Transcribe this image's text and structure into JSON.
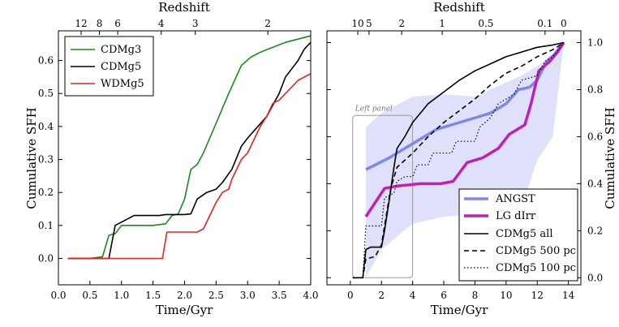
{
  "chart_data": [
    {
      "type": "line",
      "panel": "left",
      "xlabel": "Time/Gyr",
      "ylabel": "Cumulative SFH",
      "top_axis_label": "Redshift",
      "xlim": [
        0.0,
        4.0
      ],
      "ylim": [
        -0.08,
        0.69
      ],
      "xticks": [
        0.0,
        0.5,
        1.0,
        1.5,
        2.0,
        2.5,
        3.0,
        3.5,
        4.0
      ],
      "xtick_labels": [
        "0.0",
        "0.5",
        "1.0",
        "1.5",
        "2.0",
        "2.5",
        "3.0",
        "3.5",
        "4.0"
      ],
      "yticks": [
        0.0,
        0.1,
        0.2,
        0.3,
        0.4,
        0.5,
        0.6
      ],
      "ytick_labels": [
        "0.0",
        "0.1",
        "0.2",
        "0.3",
        "0.4",
        "0.5",
        "0.6"
      ],
      "top_ticks": [
        {
          "t": 0.36,
          "label": "12"
        },
        {
          "t": 0.65,
          "label": "8"
        },
        {
          "t": 0.94,
          "label": "6"
        },
        {
          "t": 1.63,
          "label": "4"
        },
        {
          "t": 2.17,
          "label": "3"
        },
        {
          "t": 3.32,
          "label": "2"
        }
      ],
      "legend_position": "upper-left",
      "series": [
        {
          "name": "CDMg3",
          "color": "#1a8a1a",
          "width": 1.6,
          "points": [
            [
              0.15,
              0
            ],
            [
              0.5,
              0
            ],
            [
              0.7,
              0.005
            ],
            [
              0.8,
              0.07
            ],
            [
              0.9,
              0.075
            ],
            [
              1.0,
              0.1
            ],
            [
              1.5,
              0.1
            ],
            [
              1.7,
              0.105
            ],
            [
              1.8,
              0.13
            ],
            [
              1.9,
              0.135
            ],
            [
              2.0,
              0.18
            ],
            [
              2.1,
              0.27
            ],
            [
              2.2,
              0.285
            ],
            [
              2.3,
              0.32
            ],
            [
              2.5,
              0.41
            ],
            [
              2.7,
              0.5
            ],
            [
              2.9,
              0.585
            ],
            [
              3.05,
              0.61
            ],
            [
              3.2,
              0.625
            ],
            [
              3.4,
              0.64
            ],
            [
              3.6,
              0.655
            ],
            [
              3.8,
              0.665
            ],
            [
              4.0,
              0.675
            ]
          ]
        },
        {
          "name": "CDMg5",
          "color": "#000000",
          "width": 1.6,
          "points": [
            [
              0.15,
              0
            ],
            [
              0.8,
              0
            ],
            [
              0.9,
              0.1
            ],
            [
              1.1,
              0.12
            ],
            [
              1.2,
              0.13
            ],
            [
              1.6,
              0.13
            ],
            [
              1.7,
              0.133
            ],
            [
              2.0,
              0.133
            ],
            [
              2.1,
              0.135
            ],
            [
              2.2,
              0.18
            ],
            [
              2.35,
              0.2
            ],
            [
              2.5,
              0.21
            ],
            [
              2.6,
              0.23
            ],
            [
              2.75,
              0.27
            ],
            [
              2.9,
              0.34
            ],
            [
              3.0,
              0.365
            ],
            [
              3.3,
              0.43
            ],
            [
              3.5,
              0.5
            ],
            [
              3.6,
              0.55
            ],
            [
              3.7,
              0.575
            ],
            [
              3.8,
              0.6
            ],
            [
              3.9,
              0.635
            ],
            [
              4.0,
              0.655
            ]
          ]
        },
        {
          "name": "WDMg5",
          "color": "#e8231c",
          "width": 1.6,
          "points": [
            [
              0.15,
              0
            ],
            [
              1.65,
              0
            ],
            [
              1.72,
              0.08
            ],
            [
              2.2,
              0.08
            ],
            [
              2.3,
              0.09
            ],
            [
              2.4,
              0.13
            ],
            [
              2.5,
              0.17
            ],
            [
              2.6,
              0.2
            ],
            [
              2.7,
              0.21
            ],
            [
              2.75,
              0.24
            ],
            [
              2.9,
              0.3
            ],
            [
              3.0,
              0.32
            ],
            [
              3.1,
              0.36
            ],
            [
              3.2,
              0.4
            ],
            [
              3.3,
              0.43
            ],
            [
              3.4,
              0.47
            ],
            [
              3.5,
              0.48
            ],
            [
              3.6,
              0.5
            ],
            [
              3.7,
              0.52
            ],
            [
              3.8,
              0.54
            ],
            [
              4.0,
              0.56
            ]
          ]
        }
      ]
    },
    {
      "type": "line",
      "panel": "right",
      "xlabel": "Time/Gyr",
      "ylabel": "Cumulative SFH",
      "top_axis_label": "Redshift",
      "xlim": [
        -1.5,
        14.8
      ],
      "ylim": [
        -0.03,
        1.05
      ],
      "xticks": [
        0,
        2,
        4,
        6,
        8,
        10,
        12,
        14
      ],
      "xtick_labels": [
        "0",
        "2",
        "4",
        "6",
        "8",
        "10",
        "12",
        "14"
      ],
      "yticks": [
        0.0,
        0.2,
        0.4,
        0.6,
        0.8,
        1.0
      ],
      "ytick_labels": [
        "0.0",
        "0.2",
        "0.4",
        "0.6",
        "0.8",
        "1.0"
      ],
      "top_ticks": [
        {
          "t": 0.48,
          "label": "10"
        },
        {
          "t": 1.2,
          "label": "5"
        },
        {
          "t": 3.3,
          "label": "2"
        },
        {
          "t": 5.9,
          "label": "1"
        },
        {
          "t": 8.7,
          "label": "0.5"
        },
        {
          "t": 12.5,
          "label": "0.1"
        },
        {
          "t": 13.7,
          "label": "0"
        }
      ],
      "annotation": "Left panel",
      "annotation_box": {
        "t0": 0.15,
        "t1": 4.0,
        "y0": 0.0,
        "y1": 0.69
      },
      "legend_position": "lower-right",
      "band": {
        "color": "#8a93e8",
        "x": [
          1.0,
          2.0,
          4.0,
          6.0,
          8.0,
          10.0,
          11.0,
          12.0,
          13.0,
          13.7
        ],
        "upper": [
          0.64,
          0.7,
          0.77,
          0.78,
          0.77,
          0.83,
          0.86,
          0.9,
          0.95,
          1.0
        ],
        "lower": [
          0.0,
          0.12,
          0.23,
          0.26,
          0.27,
          0.27,
          0.3,
          0.5,
          0.6,
          1.0
        ]
      },
      "series": [
        {
          "name": "ANGST",
          "color": "#7f86ee",
          "width": 3.5,
          "dash": "",
          "points": [
            [
              1.0,
              0.46
            ],
            [
              2.5,
              0.51
            ],
            [
              4.0,
              0.57
            ],
            [
              5.5,
              0.63
            ],
            [
              7.0,
              0.66
            ],
            [
              9.0,
              0.7
            ],
            [
              10.0,
              0.74
            ],
            [
              10.8,
              0.8
            ],
            [
              11.5,
              0.81
            ],
            [
              12.0,
              0.84
            ],
            [
              12.6,
              0.92
            ],
            [
              13.1,
              0.95
            ],
            [
              13.7,
              1.0
            ]
          ]
        },
        {
          "name": "LG dIrr",
          "color": "#c020b8",
          "width": 3.5,
          "dash": "",
          "points": [
            [
              1.0,
              0.26
            ],
            [
              2.2,
              0.38
            ],
            [
              3.0,
              0.39
            ],
            [
              4.5,
              0.4
            ],
            [
              5.8,
              0.4
            ],
            [
              6.6,
              0.41
            ],
            [
              7.5,
              0.49
            ],
            [
              8.5,
              0.51
            ],
            [
              9.5,
              0.55
            ],
            [
              10.2,
              0.61
            ],
            [
              11.2,
              0.65
            ],
            [
              11.6,
              0.74
            ],
            [
              12.1,
              0.88
            ],
            [
              12.8,
              0.92
            ],
            [
              13.3,
              0.96
            ],
            [
              13.7,
              1.0
            ]
          ]
        },
        {
          "name": "CDMg5 all",
          "color": "#000000",
          "width": 1.6,
          "dash": "",
          "points": [
            [
              0.15,
              0
            ],
            [
              0.8,
              0
            ],
            [
              1.0,
              0.12
            ],
            [
              1.3,
              0.13
            ],
            [
              2.0,
              0.13
            ],
            [
              2.2,
              0.2
            ],
            [
              2.5,
              0.33
            ],
            [
              2.8,
              0.47
            ],
            [
              3.0,
              0.55
            ],
            [
              3.5,
              0.6
            ],
            [
              4.0,
              0.66
            ],
            [
              4.5,
              0.7
            ],
            [
              5.0,
              0.74
            ],
            [
              6.0,
              0.79
            ],
            [
              7.0,
              0.84
            ],
            [
              8.0,
              0.88
            ],
            [
              9.0,
              0.91
            ],
            [
              10.0,
              0.94
            ],
            [
              11.0,
              0.96
            ],
            [
              12.0,
              0.98
            ],
            [
              13.0,
              0.99
            ],
            [
              13.7,
              1.0
            ]
          ]
        },
        {
          "name": "CDMg5 500 pc",
          "color": "#000000",
          "width": 1.6,
          "dash": "6,4",
          "points": [
            [
              0.15,
              0
            ],
            [
              0.8,
              0
            ],
            [
              1.0,
              0.08
            ],
            [
              1.6,
              0.09
            ],
            [
              2.0,
              0.14
            ],
            [
              2.6,
              0.38
            ],
            [
              3.0,
              0.47
            ],
            [
              3.5,
              0.5
            ],
            [
              4.0,
              0.53
            ],
            [
              5.0,
              0.6
            ],
            [
              6.0,
              0.66
            ],
            [
              7.0,
              0.71
            ],
            [
              8.0,
              0.76
            ],
            [
              9.0,
              0.82
            ],
            [
              10.0,
              0.87
            ],
            [
              11.0,
              0.9
            ],
            [
              12.0,
              0.94
            ],
            [
              13.0,
              0.97
            ],
            [
              13.7,
              1.0
            ]
          ]
        },
        {
          "name": "CDMg5 100 pc",
          "color": "#000000",
          "width": 1.2,
          "dash": "1.5,2.5",
          "points": [
            [
              0.15,
              0
            ],
            [
              0.8,
              0
            ],
            [
              1.0,
              0.22
            ],
            [
              2.0,
              0.22
            ],
            [
              2.2,
              0.34
            ],
            [
              2.8,
              0.36
            ],
            [
              3.0,
              0.41
            ],
            [
              3.5,
              0.43
            ],
            [
              4.0,
              0.43
            ],
            [
              4.3,
              0.48
            ],
            [
              5.0,
              0.48
            ],
            [
              5.3,
              0.53
            ],
            [
              6.5,
              0.53
            ],
            [
              6.8,
              0.58
            ],
            [
              8.0,
              0.58
            ],
            [
              8.3,
              0.64
            ],
            [
              9.0,
              0.68
            ],
            [
              9.5,
              0.74
            ],
            [
              10.5,
              0.78
            ],
            [
              11.0,
              0.84
            ],
            [
              12.0,
              0.86
            ],
            [
              12.5,
              0.92
            ],
            [
              13.0,
              0.94
            ],
            [
              13.7,
              1.0
            ]
          ]
        }
      ]
    }
  ]
}
